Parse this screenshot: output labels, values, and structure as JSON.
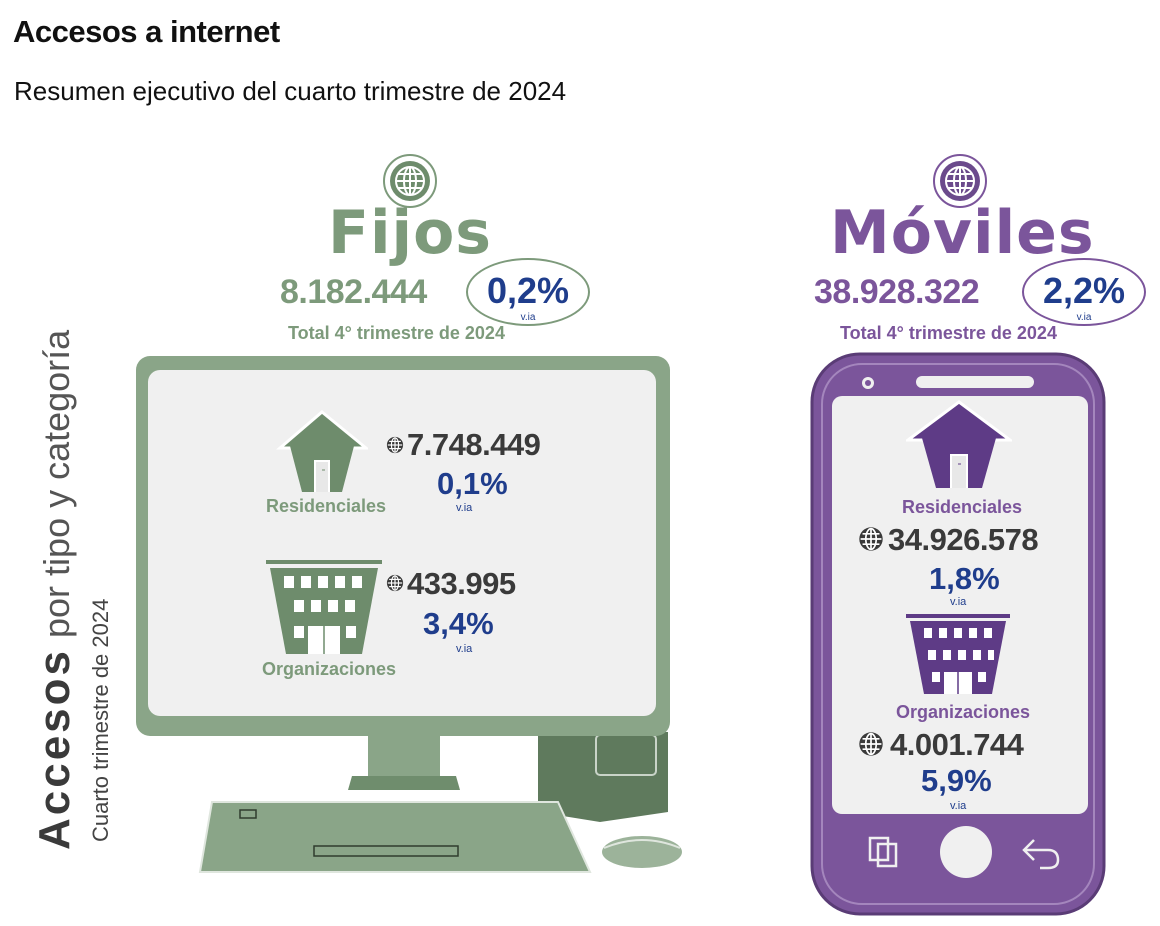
{
  "header": {
    "title": "Accesos a internet",
    "subtitle": "Resumen ejecutivo del cuarto trimestre de 2024"
  },
  "side_label": {
    "bold": "Accesos",
    "rest": "por tipo y categoría",
    "period": "Cuarto trimestre de 2024"
  },
  "colors": {
    "fijos": "#7d9a7b",
    "moviles": "#7b559b",
    "pct": "#1f3d8c",
    "dark": "#3a3a3a"
  },
  "fijos": {
    "title": "Fijos",
    "total": "8.182.444",
    "variation": "0,2%",
    "variation_label": "v.ia",
    "total_caption": "Total 4° trimestre de 2024",
    "residenciales": {
      "label": "Residenciales",
      "value": "7.748.449",
      "variation": "0,1%",
      "variation_label": "v.ia"
    },
    "organizaciones": {
      "label": "Organizaciones",
      "value": "433.995",
      "variation": "3,4%",
      "variation_label": "v.ia"
    }
  },
  "moviles": {
    "title": "Móviles",
    "total": "38.928.322",
    "variation": "2,2%",
    "variation_label": "v.ia",
    "total_caption": "Total 4° trimestre de 2024",
    "residenciales": {
      "label": "Residenciales",
      "value": "34.926.578",
      "variation": "1,8%",
      "variation_label": "v.ia"
    },
    "organizaciones": {
      "label": "Organizaciones",
      "value": "4.001.744",
      "variation": "5,9%",
      "variation_label": "v.ia"
    }
  }
}
